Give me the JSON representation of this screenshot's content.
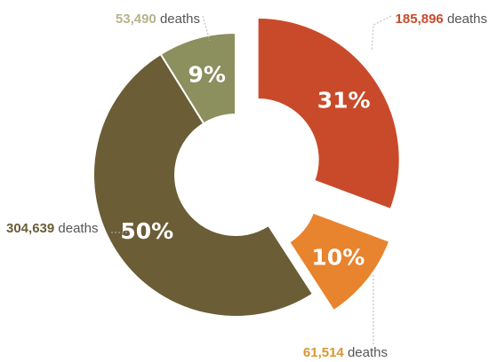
{
  "chart_data": {
    "type": "pie",
    "variant": "donut",
    "unit_label": "deaths",
    "slices": [
      {
        "name": "slice-1",
        "value": 185896,
        "value_text": "185,896",
        "percent": 31,
        "percent_text": "31%",
        "color": "#c94a2a",
        "exploded": true
      },
      {
        "name": "slice-2",
        "value": 61514,
        "value_text": "61,514",
        "percent": 10,
        "percent_text": "10%",
        "color": "#e8832e",
        "exploded": true
      },
      {
        "name": "slice-3",
        "value": 304639,
        "value_text": "304,639",
        "percent": 50,
        "percent_text": "50%",
        "color": "#6b5d36",
        "exploded": false
      },
      {
        "name": "slice-4",
        "value": 53490,
        "value_text": "53,490",
        "percent": 9,
        "percent_text": "9%",
        "color": "#8c8f5e",
        "exploded": false
      }
    ],
    "label_colors": [
      "#c94a2a",
      "#d9972f",
      "#6b5d36",
      "#b5b38b"
    ]
  }
}
